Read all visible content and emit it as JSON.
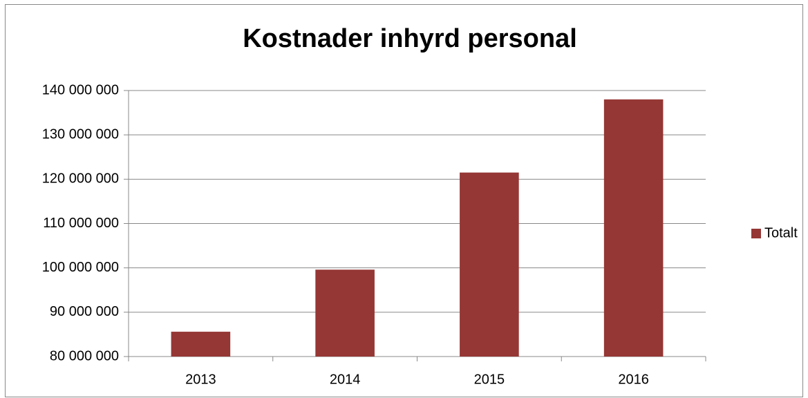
{
  "chart_data": {
    "type": "bar",
    "title": "Kostnader inhyrd personal",
    "categories": [
      "2013",
      "2014",
      "2015",
      "2016"
    ],
    "series": [
      {
        "name": "Totalt",
        "color": "#953735",
        "values": [
          85600000,
          99600000,
          121500000,
          138000000
        ]
      }
    ],
    "ylim": [
      80000000,
      140000000
    ],
    "yticks": [
      {
        "value": 80000000,
        "label": "80 000 000"
      },
      {
        "value": 90000000,
        "label": "90 000 000"
      },
      {
        "value": 100000000,
        "label": "100 000 000"
      },
      {
        "value": 110000000,
        "label": "110 000 000"
      },
      {
        "value": 120000000,
        "label": "120 000 000"
      },
      {
        "value": 130000000,
        "label": "130 000 000"
      },
      {
        "value": 140000000,
        "label": "140 000 000"
      }
    ],
    "grid": true,
    "legend": "right"
  }
}
